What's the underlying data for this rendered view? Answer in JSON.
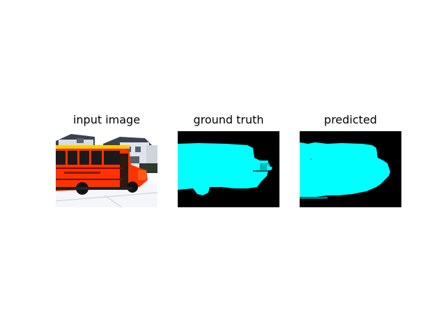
{
  "figure": {
    "panels": [
      {
        "title": "input image"
      },
      {
        "title": "ground truth"
      },
      {
        "title": "predicted"
      }
    ],
    "colors": {
      "background": "#ffffff",
      "mask_background": "#000000",
      "mask_foreground": "#00ffff",
      "bus_body": "#ff3300",
      "bus_stripe": "#7a0f00",
      "sky": "#ffffff",
      "houses": "#d8dce4",
      "roofs": "#3a4250"
    },
    "icons": [
      "school-bus-photo",
      "segmentation-mask"
    ]
  }
}
